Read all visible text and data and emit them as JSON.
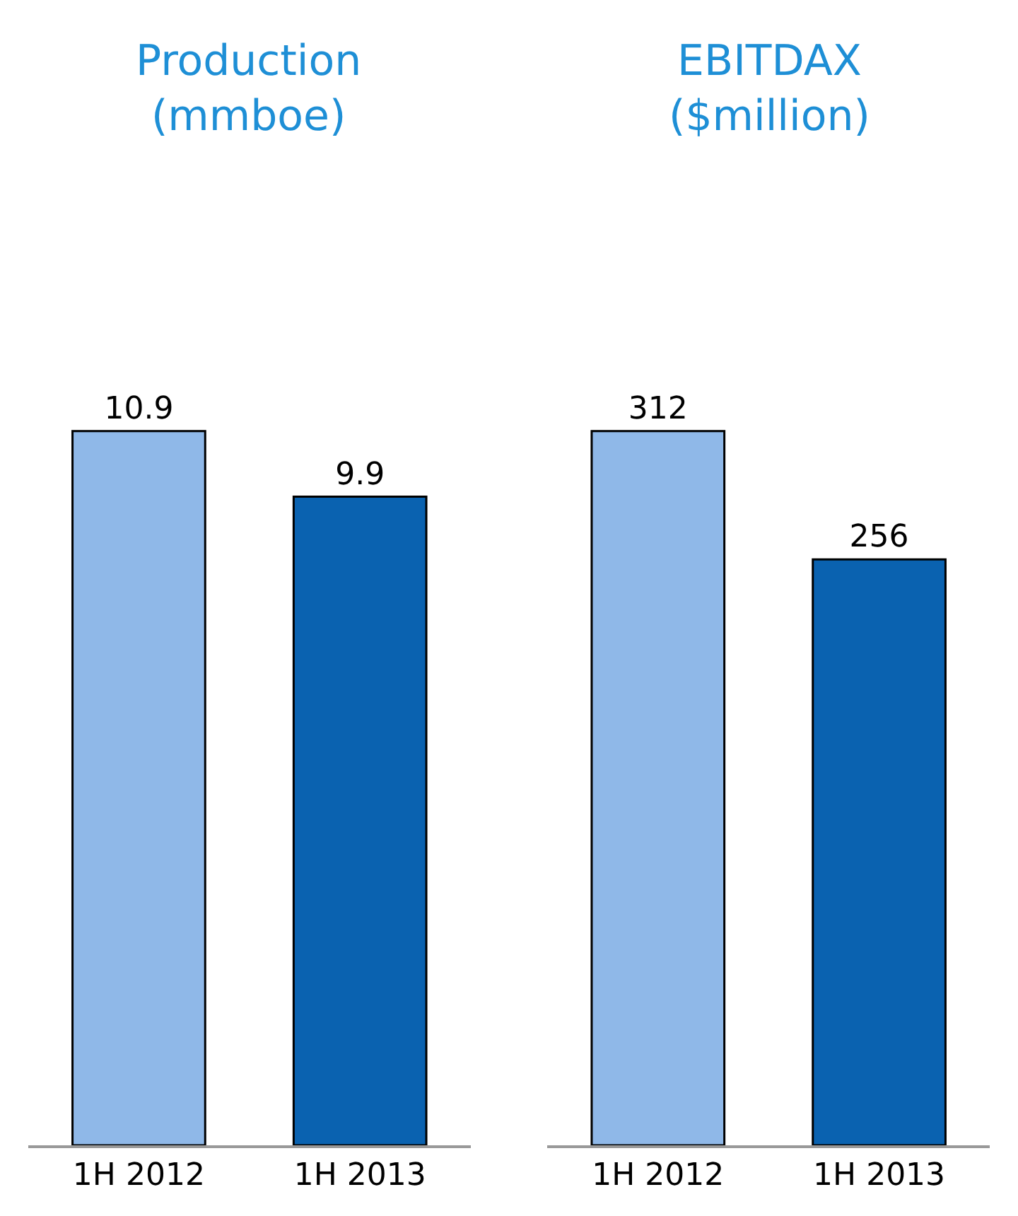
{
  "chart_data": [
    {
      "type": "bar",
      "title": "Production",
      "subtitle": "(mmboe)",
      "categories": [
        "1H 2012",
        "1H 2013"
      ],
      "values": [
        10.9,
        9.9
      ],
      "colors": [
        "#8fb8e8",
        "#0a62b0"
      ],
      "data_labels": true
    },
    {
      "type": "bar",
      "title": "EBITDAX",
      "subtitle": "($million)",
      "categories": [
        "1H 2012",
        "1H 2013"
      ],
      "values": [
        312,
        256
      ],
      "colors": [
        "#8fb8e8",
        "#0a62b0"
      ],
      "data_labels": true
    }
  ]
}
